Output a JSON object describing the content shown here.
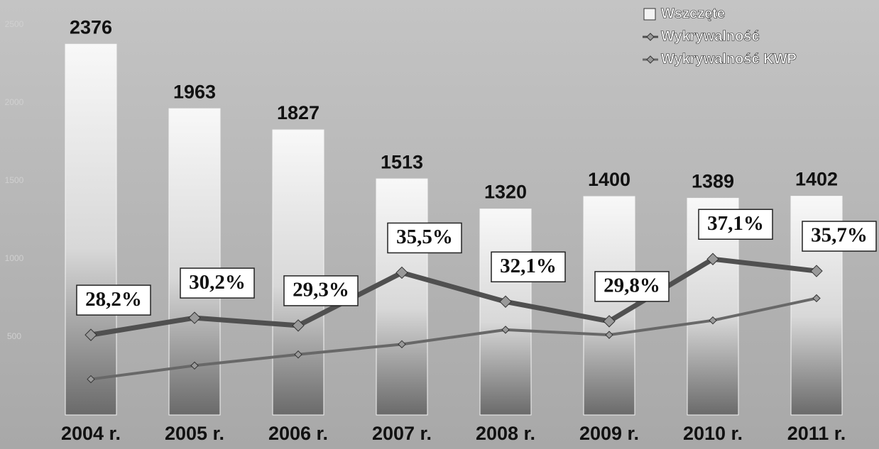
{
  "chart_data": {
    "type": "bar-line",
    "categories": [
      "2004 r.",
      "2005 r.",
      "2006 r.",
      "2007 r.",
      "2008 r.",
      "2009 r.",
      "2010 r.",
      "2011 r."
    ],
    "ylim": [
      0,
      2500
    ],
    "yticks": [
      500,
      1000,
      1500,
      2000,
      2500
    ],
    "y2lim": [
      18.8,
      64.6
    ],
    "legend": "top-right",
    "series": [
      {
        "name": "Wszczęte",
        "type": "bar",
        "color": "#f4f4f4",
        "values": [
          2376,
          1963,
          1827,
          1513,
          1320,
          1400,
          1389,
          1402
        ]
      },
      {
        "name": "Wykrywalność",
        "type": "line",
        "axis": "y2",
        "color": "#505050",
        "values": [
          28.2,
          30.2,
          29.3,
          35.5,
          32.1,
          29.8,
          37.1,
          35.7
        ],
        "value_labels": [
          "28,2%",
          "30,2%",
          "29,3%",
          "35,5%",
          "32,1%",
          "29,8%",
          "37,1%",
          "35,7%"
        ]
      },
      {
        "name": "Wykrywalność KWP",
        "type": "line",
        "axis": "y2",
        "color": "#686868",
        "values": [
          23.0,
          24.6,
          25.9,
          27.1,
          28.8,
          28.2,
          29.9,
          32.5
        ]
      }
    ]
  }
}
